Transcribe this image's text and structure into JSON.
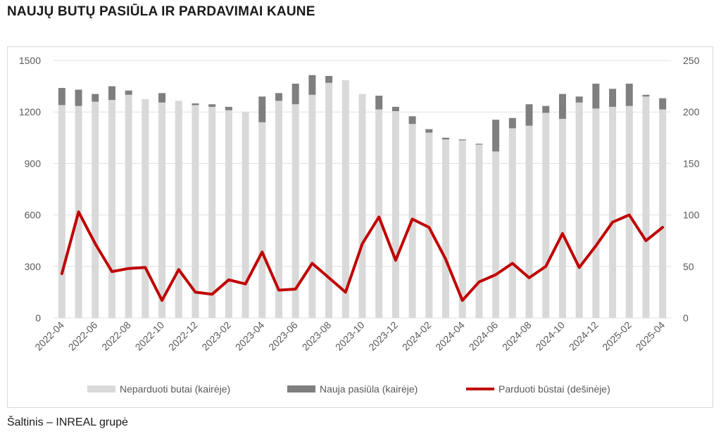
{
  "title": "NAUJŲ BUTŲ PASIŪLA IR PARDAVIMAI KAUNE",
  "source": "Šaltinis – INREAL grupė",
  "chart_data": {
    "type": "bar",
    "colors": {
      "unsold": "#d9d9d9",
      "new_supply": "#7f7f7f",
      "sold": "#c00000",
      "grid": "#e0e0e0"
    },
    "x": [
      "2022-04",
      "2022-05",
      "2022-06",
      "2022-07",
      "2022-08",
      "2022-09",
      "2022-10",
      "2022-11",
      "2022-12",
      "2023-01",
      "2023-02",
      "2023-03",
      "2023-04",
      "2023-05",
      "2023-06",
      "2023-07",
      "2023-08",
      "2023-09",
      "2023-10",
      "2023-11",
      "2023-12",
      "2024-01",
      "2024-02",
      "2024-03",
      "2024-04",
      "2024-05",
      "2024-06",
      "2024-07",
      "2024-08",
      "2024-09",
      "2024-10",
      "2024-11",
      "2024-12",
      "2025-01",
      "2025-02",
      "2025-03",
      "2025-04"
    ],
    "x_tick_labels": [
      "2022-04",
      "2022-06",
      "2022-08",
      "2022-10",
      "2022-12",
      "2023-02",
      "2023-04",
      "2023-06",
      "2023-08",
      "2023-10",
      "2023-12",
      "2024-02",
      "2024-04",
      "2024-06",
      "2024-08",
      "2024-10",
      "2024-12",
      "2025-02",
      "2025-04"
    ],
    "left_axis": {
      "ylim": [
        0,
        1500
      ],
      "ticks": [
        "0",
        "300",
        "600",
        "900",
        "1200",
        "1500"
      ]
    },
    "right_axis": {
      "ylim": [
        0,
        250
      ],
      "ticks": [
        "0",
        "50",
        "100",
        "150",
        "200",
        "250"
      ]
    },
    "series": [
      {
        "name": "Neparduoti butai (kairėje)",
        "type": "bar",
        "axis": "left",
        "values": [
          1240,
          1235,
          1260,
          1270,
          1300,
          1275,
          1255,
          1265,
          1240,
          1230,
          1210,
          1200,
          1140,
          1265,
          1245,
          1300,
          1370,
          1385,
          1305,
          1215,
          1205,
          1130,
          1080,
          1040,
          1035,
          1010,
          970,
          1105,
          1120,
          1195,
          1160,
          1255,
          1220,
          1230,
          1235,
          1290,
          1215
        ]
      },
      {
        "name": "Nauja pasiūla (kairėje)",
        "type": "stacked-bar",
        "axis": "left",
        "values": [
          100,
          95,
          45,
          80,
          25,
          0,
          55,
          0,
          10,
          15,
          20,
          0,
          150,
          45,
          120,
          115,
          40,
          0,
          0,
          80,
          25,
          45,
          20,
          10,
          5,
          5,
          185,
          60,
          125,
          40,
          145,
          35,
          145,
          105,
          130,
          10,
          65
        ]
      },
      {
        "name": "Parduoti būstai (dešinėje)",
        "type": "line",
        "axis": "right",
        "values": [
          43,
          103,
          72,
          45,
          48,
          49,
          17,
          47,
          25,
          23,
          37,
          33,
          64,
          27,
          28,
          53,
          39,
          25,
          72,
          98,
          56,
          96,
          88,
          57,
          17,
          35,
          42,
          53,
          39,
          50,
          82,
          49,
          70,
          93,
          100,
          75,
          88
        ]
      }
    ]
  }
}
